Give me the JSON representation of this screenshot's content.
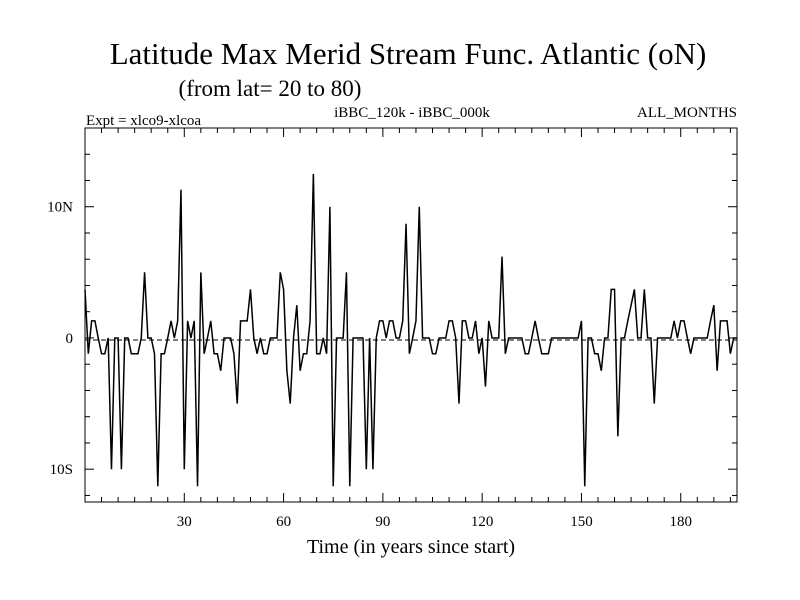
{
  "chart_data": {
    "type": "line",
    "title": "Latitude Max Merid Stream Func. Atlantic (oN)",
    "subtitle": "(from lat= 20 to 80)",
    "left_label": "Expt = xlco9-xlcoa",
    "center_label": "iBBC_120k - iBBC_000k",
    "right_label": "ALL_MONTHS",
    "xlabel": "Time (in years since start)",
    "ylabel": "",
    "xlim": [
      0,
      197
    ],
    "ylim": [
      -12.5,
      16
    ],
    "x_ticks": [
      30,
      60,
      90,
      120,
      150,
      180
    ],
    "x_tick_labels": [
      "30",
      "60",
      "90",
      "120",
      "150",
      "180"
    ],
    "y_ticks": [
      -10,
      0,
      10
    ],
    "y_tick_labels": [
      "10S",
      "0",
      "10N"
    ],
    "zero_line": "dashed",
    "grid": false,
    "series": [
      {
        "x": [
          0,
          1,
          2,
          3,
          4,
          5,
          6,
          7,
          8,
          9,
          10,
          11,
          12,
          13,
          14,
          15,
          16,
          17,
          18,
          19,
          20,
          21,
          22,
          23,
          24,
          25,
          26,
          27,
          28,
          29,
          30,
          31,
          32,
          33,
          34,
          35,
          36,
          37,
          38,
          39,
          40,
          41,
          42,
          43,
          44,
          45,
          46,
          47,
          48,
          49,
          50,
          51,
          52,
          53,
          54,
          55,
          56,
          57,
          58,
          59,
          60,
          61,
          62,
          63,
          64,
          65,
          66,
          67,
          68,
          69,
          70,
          71,
          72,
          73,
          74,
          75,
          76,
          77,
          78,
          79,
          80,
          81,
          82,
          83,
          84,
          85,
          86,
          87,
          88,
          89,
          90,
          91,
          92,
          93,
          94,
          95,
          96,
          97,
          98,
          99,
          100,
          101,
          102,
          103,
          104,
          105,
          106,
          107,
          108,
          109,
          110,
          111,
          112,
          113,
          114,
          115,
          116,
          117,
          118,
          119,
          120,
          121,
          122,
          123,
          124,
          125,
          126,
          127,
          128,
          129,
          130,
          131,
          132,
          133,
          134,
          135,
          136,
          137,
          138,
          139,
          140,
          141,
          142,
          143,
          144,
          145,
          146,
          147,
          148,
          149,
          150,
          151,
          152,
          153,
          154,
          155,
          156,
          157,
          158,
          159,
          160,
          161,
          162,
          163,
          164,
          165,
          166,
          167,
          168,
          169,
          170,
          171,
          172,
          173,
          174,
          175,
          176,
          177,
          178,
          179,
          180,
          181,
          182,
          183,
          184,
          185,
          186,
          187,
          188,
          189,
          190,
          191,
          192,
          193,
          194,
          195,
          196,
          197
        ],
        "y": [
          3.7,
          -1.2,
          1.3,
          1.3,
          0,
          -1.2,
          -1.2,
          0,
          -10,
          0,
          0,
          -10,
          0,
          0,
          -1.2,
          -1.2,
          -1.2,
          0,
          5,
          0,
          0,
          -1.2,
          -11.3,
          -1.2,
          -1.2,
          0,
          1.3,
          0,
          1.3,
          11.3,
          -10,
          1.3,
          0,
          1.3,
          -11.3,
          5,
          -1.2,
          0,
          1.3,
          -1.2,
          -1.2,
          -2.5,
          0,
          0,
          0,
          -1.2,
          -5,
          1.3,
          1.3,
          1.3,
          3.7,
          0,
          -1.2,
          0,
          -1.2,
          -1.2,
          0,
          0,
          0,
          5,
          3.7,
          -2.5,
          -5,
          0,
          2.5,
          -2.5,
          -1.2,
          -1.2,
          1.3,
          12.5,
          -1.2,
          -1.2,
          0,
          -1.2,
          10,
          -11.3,
          0,
          0,
          0,
          5,
          -11.3,
          0,
          0,
          0,
          0,
          -10,
          0,
          -10,
          0,
          1.3,
          1.3,
          0,
          1.3,
          1.3,
          0,
          0,
          1.3,
          8.7,
          -1.2,
          0,
          1.3,
          10,
          0,
          0,
          0,
          -1.2,
          -1.2,
          0,
          0,
          0,
          1.3,
          1.3,
          0,
          -5,
          1.3,
          1.3,
          0,
          0,
          1.3,
          -1.2,
          0,
          -3.7,
          1.3,
          0,
          0,
          0,
          6.2,
          -1.2,
          0,
          0,
          0,
          0,
          0,
          -1.2,
          -1.2,
          0,
          1.3,
          0,
          -1.2,
          -1.2,
          -1.2,
          0,
          0,
          0,
          0,
          0,
          0,
          0,
          0,
          0,
          1.3,
          -11.3,
          0,
          0,
          -1.2,
          -1.2,
          -2.5,
          0,
          0,
          3.7,
          3.7,
          -7.5,
          0,
          0,
          1.3,
          2.5,
          3.7,
          0,
          0,
          3.7,
          0,
          0,
          -5,
          0,
          0,
          0,
          0,
          0,
          1.3,
          0,
          1.3,
          1.3,
          0,
          -1.2,
          0,
          0,
          0,
          0,
          0,
          1.3,
          2.5,
          -2.5,
          1.3,
          1.3,
          1.3,
          -1.2,
          0,
          0
        ]
      }
    ]
  }
}
